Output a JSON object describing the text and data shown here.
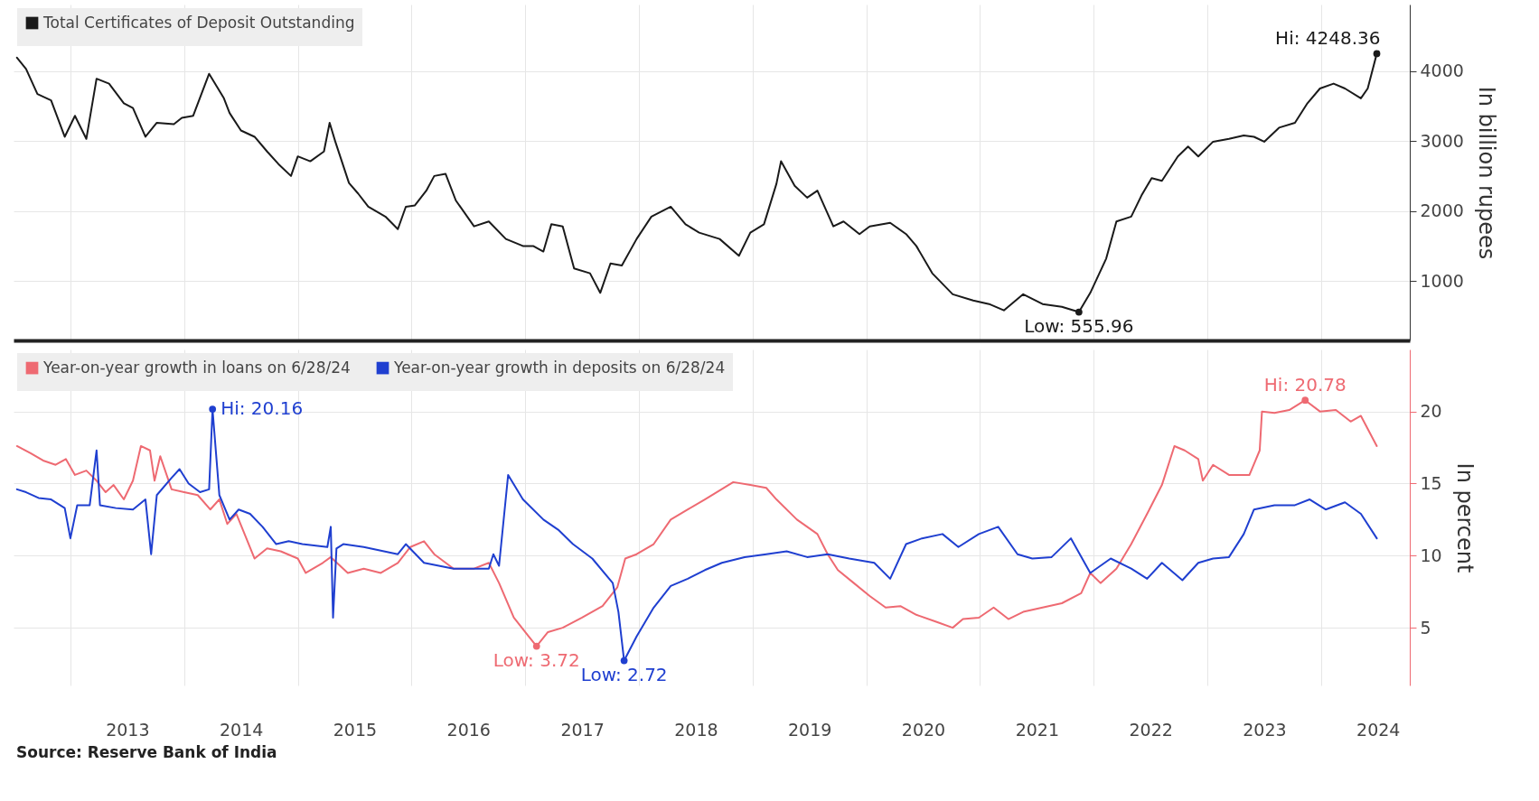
{
  "chart_data": [
    {
      "type": "line",
      "ylabel": "In billion rupees",
      "legend": "top left",
      "grid": true,
      "tick_labels": "y",
      "x": [
        2012.53,
        2012.61,
        2012.71,
        2012.83,
        2012.95,
        2013.04,
        2013.14,
        2013.23,
        2013.34,
        2013.47,
        2013.55,
        2013.66,
        2013.76,
        2013.91,
        2013.98,
        2014.08,
        2014.22,
        2014.35,
        2014.4,
        2014.5,
        2014.62,
        2014.73,
        2014.83,
        2014.94,
        2015.0,
        2015.11,
        2015.23,
        2015.28,
        2015.33,
        2015.45,
        2015.53,
        2015.62,
        2015.77,
        2015.88,
        2015.95,
        2016.03,
        2016.13,
        2016.2,
        2016.3,
        2016.39,
        2016.55,
        2016.68,
        2016.83,
        2016.98,
        2017.07,
        2017.16,
        2017.23,
        2017.33,
        2017.43,
        2017.57,
        2017.66,
        2017.75,
        2017.85,
        2017.98,
        2018.11,
        2018.28,
        2018.41,
        2018.53,
        2018.71,
        2018.88,
        2018.98,
        2019.1,
        2019.21,
        2019.25,
        2019.37,
        2019.48,
        2019.57,
        2019.71,
        2019.8,
        2019.94,
        2020.03,
        2020.21,
        2020.35,
        2020.44,
        2020.58,
        2020.76,
        2020.94,
        2021.08,
        2021.21,
        2021.38,
        2021.55,
        2021.72,
        2021.87,
        2021.97,
        2022.11,
        2022.2,
        2022.33,
        2022.42,
        2022.51,
        2022.6,
        2022.74,
        2022.83,
        2022.92,
        2023.05,
        2023.19,
        2023.32,
        2023.41,
        2023.5,
        2023.63,
        2023.77,
        2023.88,
        2023.99,
        2024.11,
        2024.21,
        2024.35,
        2024.41,
        2024.49
      ],
      "series": [
        {
          "name": "Total Certificates of Deposit Outstanding",
          "color": "#1a1a1a",
          "values": [
            4190,
            4030,
            3670,
            3580,
            3060,
            3360,
            3030,
            3890,
            3820,
            3540,
            3470,
            3060,
            3260,
            3240,
            3330,
            3360,
            3960,
            3610,
            3400,
            3150,
            3060,
            2850,
            2670,
            2500,
            2780,
            2710,
            2850,
            3260,
            2990,
            2400,
            2250,
            2060,
            1920,
            1740,
            2060,
            2080,
            2290,
            2500,
            2530,
            2150,
            1780,
            1850,
            1600,
            1500,
            1500,
            1420,
            1810,
            1780,
            1180,
            1110,
            830,
            1250,
            1220,
            1600,
            1920,
            2060,
            1810,
            1690,
            1600,
            1360,
            1690,
            1810,
            2390,
            2710,
            2360,
            2190,
            2290,
            1780,
            1850,
            1670,
            1780,
            1830,
            1670,
            1500,
            1110,
            810,
            720,
            670,
            580,
            810,
            670,
            630,
            555.96,
            830,
            1320,
            1850,
            1920,
            2220,
            2470,
            2430,
            2780,
            2920,
            2780,
            2990,
            3030,
            3080,
            3060,
            2990,
            3190,
            3260,
            3540,
            3750,
            3820,
            3750,
            3610,
            3750,
            4248.36
          ]
        }
      ],
      "xlim": [
        2012.5,
        2024.78
      ],
      "xticks": [
        2013,
        2014,
        2015,
        2016,
        2017,
        2018,
        2019,
        2020,
        2021,
        2022,
        2023,
        2024
      ],
      "ylim": [
        150,
        4950
      ],
      "yticks": [
        1000,
        2000,
        3000,
        4000
      ],
      "annotations": [
        {
          "text": "Hi: 4248.36",
          "x": 2024.49,
          "y": 4248.36
        },
        {
          "text": "Low: 555.96",
          "x": 2021.87,
          "y": 555.96
        }
      ]
    },
    {
      "type": "line",
      "ylabel": "In percent",
      "legend": "top left",
      "grid": true,
      "series": [
        {
          "name": "Year-on-year growth in loans on 6/28/24",
          "color": "#ee6a72",
          "x": [
            2012.53,
            2012.65,
            2012.76,
            2012.87,
            2012.96,
            2013.04,
            2013.14,
            2013.23,
            2013.31,
            2013.38,
            2013.47,
            2013.55,
            2013.62,
            2013.7,
            2013.74,
            2013.79,
            2013.89,
            2014.0,
            2014.12,
            2014.23,
            2014.31,
            2014.38,
            2014.46,
            2014.62,
            2014.73,
            2014.85,
            2015.0,
            2015.07,
            2015.22,
            2015.29,
            2015.44,
            2015.58,
            2015.73,
            2015.88,
            2015.99,
            2016.11,
            2016.2,
            2016.37,
            2016.55,
            2016.68,
            2016.77,
            2016.9,
            2017.03,
            2017.1,
            2017.2,
            2017.33,
            2017.5,
            2017.68,
            2017.81,
            2017.88,
            2017.98,
            2018.13,
            2018.28,
            2018.43,
            2018.58,
            2018.83,
            2018.98,
            2019.12,
            2019.21,
            2019.39,
            2019.57,
            2019.66,
            2019.75,
            2019.89,
            2020.03,
            2020.17,
            2020.3,
            2020.44,
            2020.62,
            2020.76,
            2020.85,
            2020.99,
            2021.12,
            2021.25,
            2021.38,
            2021.55,
            2021.72,
            2021.89,
            2021.97,
            2022.06,
            2022.2,
            2022.33,
            2022.47,
            2022.6,
            2022.71,
            2022.8,
            2022.92,
            2022.96,
            2023.05,
            2023.19,
            2023.37,
            2023.46,
            2023.48,
            2023.59,
            2023.72,
            2023.86,
            2023.99,
            2024.13,
            2024.26,
            2024.35,
            2024.49
          ],
          "values": [
            17.6,
            17.1,
            16.6,
            16.3,
            16.7,
            15.6,
            15.9,
            15.2,
            14.4,
            14.9,
            13.9,
            15.2,
            17.6,
            17.3,
            15.2,
            16.9,
            14.6,
            14.4,
            14.2,
            13.2,
            13.9,
            12.2,
            12.9,
            9.8,
            10.5,
            10.3,
            9.8,
            8.8,
            9.5,
            9.9,
            8.8,
            9.1,
            8.8,
            9.5,
            10.6,
            11.0,
            10.1,
            9.1,
            9.1,
            9.5,
            8.1,
            5.7,
            4.4,
            3.72,
            4.7,
            5.0,
            5.7,
            6.5,
            7.8,
            9.8,
            10.1,
            10.8,
            12.5,
            13.2,
            13.9,
            15.1,
            14.9,
            14.7,
            13.9,
            12.5,
            11.5,
            10.1,
            9.0,
            8.1,
            7.2,
            6.4,
            6.5,
            5.9,
            5.4,
            5.0,
            5.6,
            5.7,
            6.4,
            5.6,
            6.1,
            6.4,
            6.7,
            7.4,
            8.8,
            8.1,
            9.1,
            10.8,
            12.9,
            14.9,
            17.6,
            17.3,
            16.7,
            15.2,
            16.3,
            15.6,
            15.6,
            17.3,
            20.0,
            19.9,
            20.1,
            20.78,
            20.0,
            20.1,
            19.3,
            19.7,
            17.6
          ]
        },
        {
          "name": "Year-on-year growth in deposits on 6/28/24",
          "color": "#1f3fd0",
          "x": [
            2012.53,
            2012.61,
            2012.72,
            2012.83,
            2012.95,
            2013.0,
            2013.06,
            2013.17,
            2013.23,
            2013.26,
            2013.4,
            2013.55,
            2013.66,
            2013.71,
            2013.76,
            2013.89,
            2013.96,
            2014.04,
            2014.14,
            2014.22,
            2014.25,
            2014.31,
            2014.4,
            2014.48,
            2014.58,
            2014.69,
            2014.81,
            2014.92,
            2015.04,
            2015.26,
            2015.29,
            2015.31,
            2015.34,
            2015.4,
            2015.58,
            2015.88,
            2015.95,
            2016.11,
            2016.37,
            2016.68,
            2016.72,
            2016.77,
            2016.85,
            2016.98,
            2017.16,
            2017.29,
            2017.42,
            2017.59,
            2017.77,
            2017.82,
            2017.87,
            2017.98,
            2018.13,
            2018.28,
            2018.43,
            2018.58,
            2018.73,
            2018.93,
            2019.12,
            2019.3,
            2019.48,
            2019.66,
            2019.85,
            2020.07,
            2020.21,
            2020.35,
            2020.49,
            2020.67,
            2020.81,
            2020.99,
            2021.16,
            2021.33,
            2021.46,
            2021.63,
            2021.8,
            2021.97,
            2022.15,
            2022.33,
            2022.47,
            2022.6,
            2022.78,
            2022.92,
            2023.05,
            2023.19,
            2023.32,
            2023.41,
            2023.59,
            2023.77,
            2023.9,
            2024.04,
            2024.21,
            2024.35,
            2024.49
          ],
          "values": [
            14.6,
            14.4,
            14.0,
            13.9,
            13.3,
            11.2,
            13.5,
            13.5,
            17.3,
            13.5,
            13.3,
            13.2,
            13.9,
            10.1,
            14.2,
            15.4,
            16.0,
            15.0,
            14.4,
            14.6,
            20.16,
            14.2,
            12.5,
            13.2,
            12.9,
            12.0,
            10.8,
            11.0,
            10.8,
            10.6,
            12.0,
            5.7,
            10.5,
            10.8,
            10.6,
            10.1,
            10.8,
            9.5,
            9.1,
            9.1,
            10.1,
            9.3,
            15.6,
            13.9,
            12.5,
            11.8,
            10.8,
            9.8,
            8.1,
            6.1,
            2.72,
            4.4,
            6.4,
            7.9,
            8.4,
            9.0,
            9.5,
            9.9,
            10.1,
            10.3,
            9.9,
            10.1,
            9.8,
            9.5,
            8.4,
            10.8,
            11.2,
            11.5,
            10.6,
            11.5,
            12.0,
            10.1,
            9.8,
            9.9,
            11.2,
            8.8,
            9.8,
            9.1,
            8.4,
            9.5,
            8.3,
            9.5,
            9.8,
            9.9,
            11.5,
            13.2,
            13.5,
            13.5,
            13.9,
            13.2,
            13.7,
            12.9,
            11.2
          ]
        }
      ],
      "xlim": [
        2012.5,
        2024.78
      ],
      "xticks": [
        {
          "value": 2013,
          "label": null
        },
        {
          "value": 2013.5,
          "label": "2013"
        },
        {
          "value": 2014,
          "label": null
        },
        {
          "value": 2014.5,
          "label": "2014"
        },
        {
          "value": 2015,
          "label": null
        },
        {
          "value": 2015.5,
          "label": "2015"
        },
        {
          "value": 2016,
          "label": null
        },
        {
          "value": 2016.5,
          "label": "2016"
        },
        {
          "value": 2017,
          "label": null
        },
        {
          "value": 2017.5,
          "label": "2017"
        },
        {
          "value": 2018,
          "label": null
        },
        {
          "value": 2018.5,
          "label": "2018"
        },
        {
          "value": 2019,
          "label": null
        },
        {
          "value": 2019.5,
          "label": "2019"
        },
        {
          "value": 2020,
          "label": null
        },
        {
          "value": 2020.5,
          "label": "2020"
        },
        {
          "value": 2021,
          "label": null
        },
        {
          "value": 2021.5,
          "label": "2021"
        },
        {
          "value": 2022,
          "label": null
        },
        {
          "value": 2022.5,
          "label": "2022"
        },
        {
          "value": 2023,
          "label": null
        },
        {
          "value": 2023.5,
          "label": "2023"
        },
        {
          "value": 2024,
          "label": null
        },
        {
          "value": 2024.5,
          "label": "2024"
        }
      ],
      "ylim": [
        1,
        24.3
      ],
      "yticks": [
        5,
        10,
        15,
        20
      ],
      "annotations": [
        {
          "text": "Hi: 20.16",
          "x": 2014.25,
          "y": 20.16
        },
        {
          "text": "Low: 2.72",
          "x": 2017.87,
          "y": 2.72
        },
        {
          "text": "Low: 3.72",
          "x": 2017.1,
          "y": 3.72
        },
        {
          "text": "Hi: 20.78",
          "x": 2023.86,
          "y": 20.78
        },
        "Source: Reserve Bank of India"
      ]
    }
  ]
}
